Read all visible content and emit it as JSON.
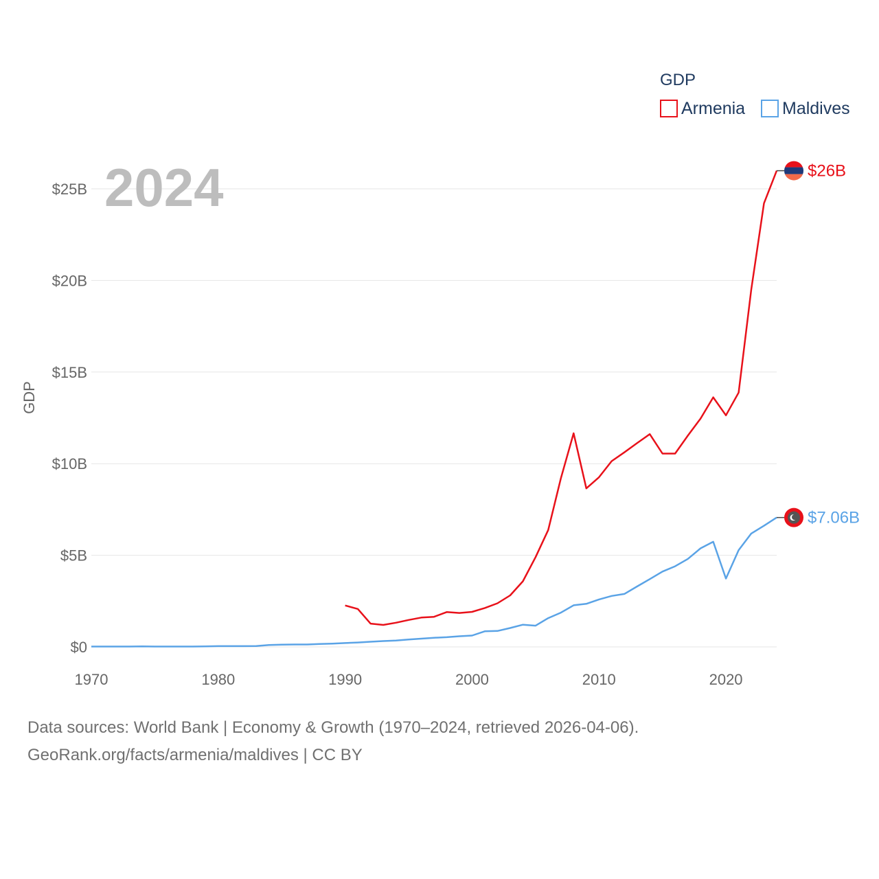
{
  "chart_data": {
    "type": "line",
    "legend_title": "GDP",
    "ylabel": "GDP",
    "year_label": "2024",
    "x_ticks": [
      1970,
      1980,
      1990,
      2000,
      2010,
      2020
    ],
    "x_tick_labels": [
      "1970",
      "1980",
      "1990",
      "2000",
      "2010",
      "2020"
    ],
    "xlim": [
      1970,
      2024
    ],
    "y_ticks": [
      0,
      5,
      10,
      15,
      20,
      25
    ],
    "y_tick_labels": [
      "$0",
      "$5B",
      "$10B",
      "$15B",
      "$20B",
      "$25B"
    ],
    "ylim": [
      0,
      25
    ],
    "units": "billions USD",
    "series": [
      {
        "name": "Armenia",
        "color": "#e8111a",
        "end_label": "$26B",
        "flag_icon": "armenia-flag-icon",
        "x": [
          1990,
          1991,
          1992,
          1993,
          1994,
          1995,
          1996,
          1997,
          1998,
          1999,
          2000,
          2001,
          2002,
          2003,
          2004,
          2005,
          2006,
          2007,
          2008,
          2009,
          2010,
          2011,
          2012,
          2013,
          2014,
          2015,
          2016,
          2017,
          2018,
          2019,
          2020,
          2021,
          2022,
          2023,
          2024
        ],
        "values": [
          2.26,
          2.07,
          1.27,
          1.2,
          1.32,
          1.47,
          1.6,
          1.64,
          1.9,
          1.85,
          1.91,
          2.12,
          2.38,
          2.81,
          3.58,
          4.9,
          6.38,
          9.21,
          11.66,
          8.65,
          9.26,
          10.14,
          10.62,
          11.12,
          11.61,
          10.55,
          10.55,
          11.53,
          12.46,
          13.62,
          12.64,
          13.88,
          19.51,
          24.21,
          25.99
        ]
      },
      {
        "name": "Maldives",
        "color": "#5aa3e6",
        "end_label": "$7.06B",
        "flag_icon": "maldives-flag-icon",
        "x": [
          1970,
          1971,
          1972,
          1973,
          1974,
          1975,
          1976,
          1977,
          1978,
          1979,
          1980,
          1981,
          1982,
          1983,
          1984,
          1985,
          1986,
          1987,
          1988,
          1989,
          1990,
          1991,
          1992,
          1993,
          1994,
          1995,
          1996,
          1997,
          1998,
          1999,
          2000,
          2001,
          2002,
          2003,
          2004,
          2005,
          2006,
          2007,
          2008,
          2009,
          2010,
          2011,
          2012,
          2013,
          2014,
          2015,
          2016,
          2017,
          2018,
          2019,
          2020,
          2021,
          2022,
          2023,
          2024
        ],
        "values": [
          0.02,
          0.02,
          0.02,
          0.02,
          0.03,
          0.02,
          0.02,
          0.02,
          0.02,
          0.03,
          0.04,
          0.04,
          0.04,
          0.05,
          0.1,
          0.12,
          0.13,
          0.13,
          0.16,
          0.18,
          0.21,
          0.24,
          0.28,
          0.32,
          0.35,
          0.4,
          0.45,
          0.5,
          0.53,
          0.58,
          0.62,
          0.85,
          0.87,
          1.03,
          1.21,
          1.16,
          1.57,
          1.87,
          2.27,
          2.35,
          2.59,
          2.78,
          2.89,
          3.3,
          3.7,
          4.11,
          4.4,
          4.8,
          5.38,
          5.74,
          3.73,
          5.28,
          6.19,
          6.61,
          7.06
        ]
      }
    ]
  },
  "source": {
    "line1": "Data sources: World Bank | Economy & Growth (1970–2024, retrieved 2026-04-06).",
    "line2": "GeoRank.org/facts/armenia/maldives | CC BY"
  }
}
